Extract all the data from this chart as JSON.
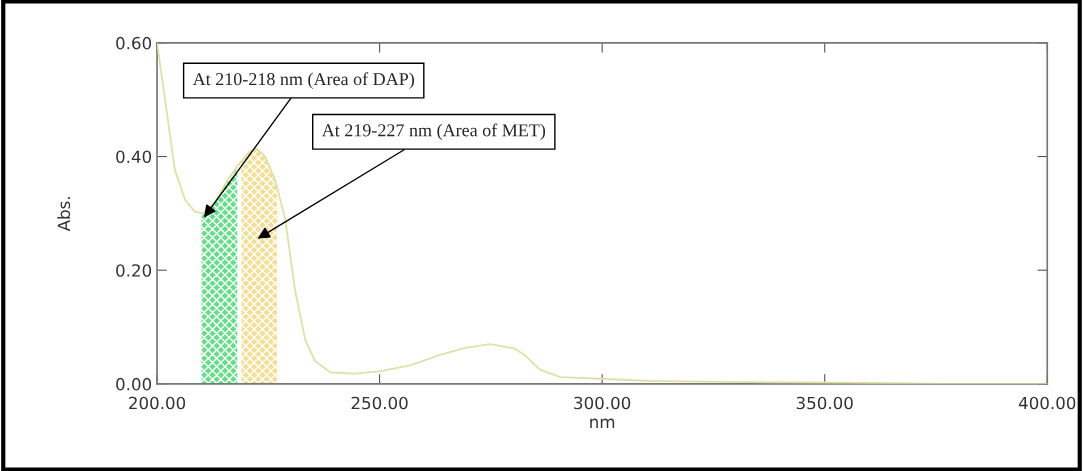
{
  "chart_data": {
    "type": "line",
    "xlabel": "nm",
    "ylabel": "Abs.",
    "series": [
      {
        "color": "#e0e0a8",
        "x": [
          200,
          201.8,
          204,
          206.3,
          208.5,
          210.3,
          213,
          216,
          218.2,
          221,
          222.2,
          224.3,
          226.5,
          228.8,
          231,
          233.3,
          235.5,
          239,
          244.5,
          250,
          257,
          263.6,
          269,
          274.8,
          277,
          280.4,
          282.7,
          286,
          290.6,
          299.5,
          310.8,
          333,
          355.7,
          378,
          400
        ],
        "values": [
          0.6,
          0.5,
          0.377,
          0.324,
          0.303,
          0.3,
          0.32,
          0.36,
          0.385,
          0.41,
          0.415,
          0.4,
          0.36,
          0.29,
          0.165,
          0.077,
          0.04,
          0.02,
          0.018,
          0.022,
          0.033,
          0.051,
          0.063,
          0.07,
          0.067,
          0.062,
          0.05,
          0.025,
          0.012,
          0.009,
          0.005,
          0.003,
          0.002,
          0,
          0
        ]
      }
    ],
    "bands": [
      {
        "axis": "x",
        "from": 210,
        "to": 218,
        "label": "At 210-218 nm (Area of DAP)",
        "color": "#66dd88"
      },
      {
        "axis": "x",
        "from": 219,
        "to": 227,
        "label": "At 219-227 nm (Area of MET)",
        "color": "#f2de94"
      }
    ],
    "xlim": [
      200,
      400
    ],
    "xticks": [
      {
        "value": 200,
        "label": "200.00"
      },
      {
        "value": 250,
        "label": "250.00"
      },
      {
        "value": 300,
        "label": "300.00"
      },
      {
        "value": 350,
        "label": "350.00"
      },
      {
        "value": 400,
        "label": "400.00"
      }
    ],
    "ylim": [
      0,
      0.6
    ],
    "yticks": [
      {
        "value": 0,
        "label": "0.00"
      },
      {
        "value": 0.2,
        "label": "0.20"
      },
      {
        "value": 0.4,
        "label": "0.40"
      },
      {
        "value": 0.6,
        "label": "0.60"
      }
    ],
    "grid": false,
    "legend": false,
    "marker": "none",
    "line_style": "solid"
  }
}
